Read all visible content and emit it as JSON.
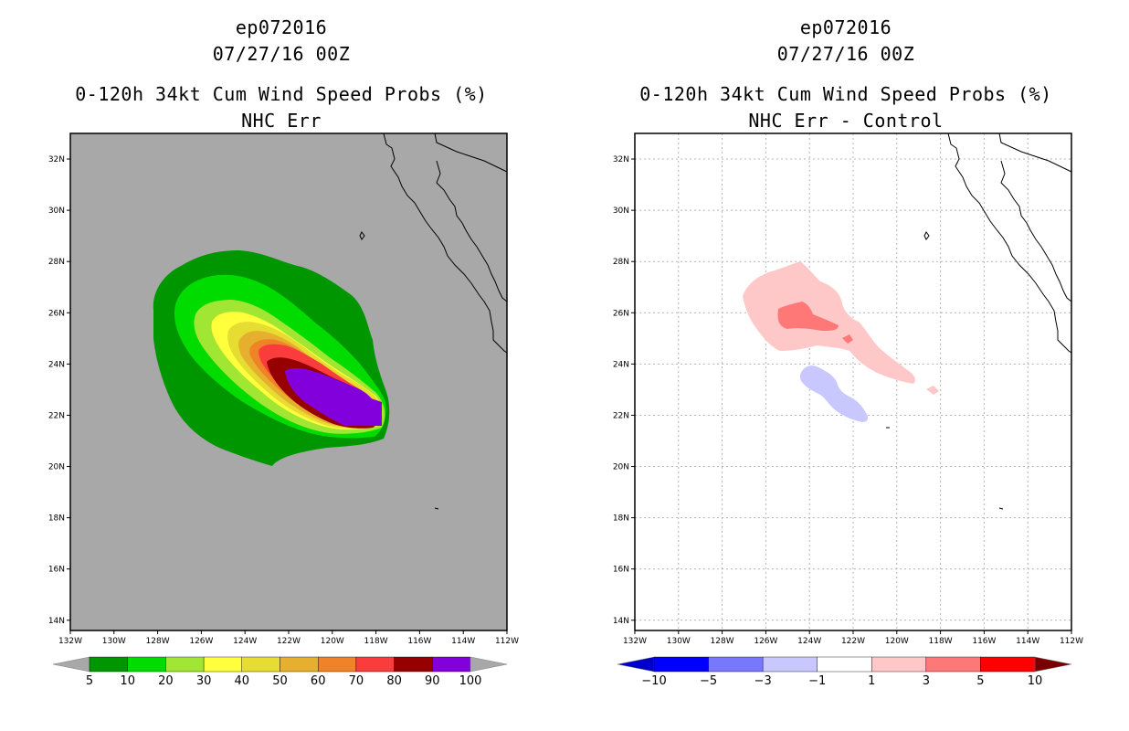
{
  "left_panel": {
    "title_line1": "ep072016",
    "title_line2": "07/27/16 00Z",
    "title_line3": "0-120h 34kt Cum Wind Speed Probs (%)",
    "title_line4": "NHC Err",
    "colorbar": {
      "labels": [
        "5",
        "10",
        "20",
        "30",
        "40",
        "50",
        "60",
        "70",
        "80",
        "90",
        "100"
      ],
      "colors": [
        "#a8a8a8",
        "#009600",
        "#00dc00",
        "#a0e632",
        "#ffff3c",
        "#e6dc32",
        "#e6af2d",
        "#f08228",
        "#fa3c3c",
        "#960000",
        "#8200dc",
        "#a8a8a8"
      ]
    }
  },
  "right_panel": {
    "title_line1": "ep072016",
    "title_line2": "07/27/16 00Z",
    "title_line3": "0-120h 34kt Cum Wind Speed Probs (%)",
    "title_line4": "NHC Err - Control",
    "colorbar": {
      "labels": [
        "−10",
        "−5",
        "−3",
        "−1",
        "1",
        "3",
        "5",
        "10"
      ],
      "colors": [
        "#0000c8",
        "#0000ff",
        "#7878ff",
        "#c8c8ff",
        "#ffffff",
        "#ffc8c8",
        "#ff7878",
        "#ff0000",
        "#780000"
      ]
    }
  },
  "axes": {
    "lat_labels": [
      "32N",
      "30N",
      "28N",
      "26N",
      "24N",
      "22N",
      "20N",
      "18N",
      "16N",
      "14N"
    ],
    "lon_labels": [
      "132W",
      "130W",
      "128W",
      "126W",
      "124W",
      "122W",
      "120W",
      "118W",
      "116W",
      "114W",
      "112W"
    ]
  },
  "map_colors": {
    "ocean_left": "#a8a8a8",
    "ocean_right": "#ffffff"
  }
}
